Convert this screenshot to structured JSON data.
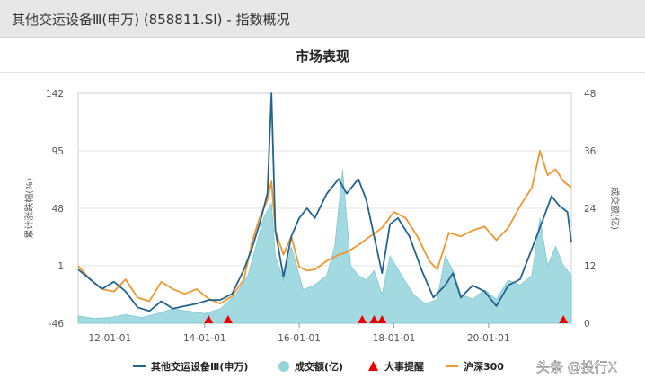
{
  "header": {
    "title": "其他交运设备Ⅲ(申万) (858811.SI) - 指数概况"
  },
  "section": {
    "title": "市场表现"
  },
  "watermark": "头条 @投行X",
  "colors": {
    "index": "#22638f",
    "volume": "#93d4dc",
    "event": "#ee0000",
    "csi300": "#f0962d"
  },
  "chart_data": {
    "type": "line",
    "xlabel": "",
    "ylabel_left": "累计涨跌幅(%)",
    "ylabel_right": "成交额(亿)",
    "y_left": {
      "min": -46,
      "max": 142,
      "ticks": [
        "142",
        "95",
        "48",
        "1",
        "-46"
      ]
    },
    "y_right": {
      "min": 0,
      "max": 48,
      "ticks": [
        "48",
        "36",
        "24",
        "12",
        "0"
      ]
    },
    "x_ticks": [
      "12-01-01",
      "14-01-01",
      "16-01-01",
      "18-01-01",
      "20-01-01"
    ],
    "x_range": [
      "2011-05-01",
      "2021-10-01"
    ],
    "legend": [
      "其他交运设备Ⅲ(申万)",
      "成交额(亿)",
      "大事提醒",
      "沪深300"
    ],
    "legend_position": "bottom",
    "grid": true,
    "series": [
      {
        "name": "其他交运设备Ⅲ(申万)",
        "points": [
          [
            "2011-05",
            -2
          ],
          [
            "2011-08",
            -10
          ],
          [
            "2011-11",
            -18
          ],
          [
            "2012-02",
            -12
          ],
          [
            "2012-05",
            -20
          ],
          [
            "2012-08",
            -33
          ],
          [
            "2012-11",
            -36
          ],
          [
            "2013-02",
            -28
          ],
          [
            "2013-05",
            -34
          ],
          [
            "2013-08",
            -32
          ],
          [
            "2013-11",
            -30
          ],
          [
            "2014-02",
            -27
          ],
          [
            "2014-05",
            -27
          ],
          [
            "2014-08",
            -22
          ],
          [
            "2014-11",
            -2
          ],
          [
            "2015-01",
            15
          ],
          [
            "2015-03",
            35
          ],
          [
            "2015-05",
            60
          ],
          [
            "2015-06",
            142
          ],
          [
            "2015-07",
            30
          ],
          [
            "2015-09",
            -8
          ],
          [
            "2015-11",
            25
          ],
          [
            "2016-01",
            40
          ],
          [
            "2016-03",
            48
          ],
          [
            "2016-05",
            40
          ],
          [
            "2016-08",
            60
          ],
          [
            "2016-11",
            72
          ],
          [
            "2017-01",
            60
          ],
          [
            "2017-04",
            72
          ],
          [
            "2017-06",
            55
          ],
          [
            "2017-08",
            25
          ],
          [
            "2017-10",
            -5
          ],
          [
            "2017-12",
            35
          ],
          [
            "2018-02",
            40
          ],
          [
            "2018-05",
            25
          ],
          [
            "2018-08",
            -2
          ],
          [
            "2018-11",
            -25
          ],
          [
            "2019-02",
            -15
          ],
          [
            "2019-04",
            -5
          ],
          [
            "2019-06",
            -25
          ],
          [
            "2019-09",
            -15
          ],
          [
            "2019-12",
            -20
          ],
          [
            "2020-03",
            -32
          ],
          [
            "2020-06",
            -15
          ],
          [
            "2020-09",
            -10
          ],
          [
            "2020-12",
            15
          ],
          [
            "2021-03",
            40
          ],
          [
            "2021-05",
            58
          ],
          [
            "2021-07",
            50
          ],
          [
            "2021-09",
            45
          ],
          [
            "2021-10",
            20
          ]
        ]
      },
      {
        "name": "沪深300",
        "points": [
          [
            "2011-05",
            1
          ],
          [
            "2011-08",
            -10
          ],
          [
            "2011-11",
            -18
          ],
          [
            "2012-02",
            -20
          ],
          [
            "2012-05",
            -10
          ],
          [
            "2012-08",
            -25
          ],
          [
            "2012-11",
            -28
          ],
          [
            "2013-02",
            -12
          ],
          [
            "2013-05",
            -18
          ],
          [
            "2013-08",
            -22
          ],
          [
            "2013-11",
            -18
          ],
          [
            "2014-02",
            -26
          ],
          [
            "2014-05",
            -30
          ],
          [
            "2014-08",
            -24
          ],
          [
            "2014-11",
            -10
          ],
          [
            "2015-01",
            20
          ],
          [
            "2015-03",
            40
          ],
          [
            "2015-05",
            55
          ],
          [
            "2015-06",
            70
          ],
          [
            "2015-07",
            30
          ],
          [
            "2015-09",
            10
          ],
          [
            "2015-11",
            25
          ],
          [
            "2016-01",
            0
          ],
          [
            "2016-03",
            -3
          ],
          [
            "2016-05",
            -2
          ],
          [
            "2016-08",
            5
          ],
          [
            "2016-11",
            10
          ],
          [
            "2017-01",
            12
          ],
          [
            "2017-04",
            18
          ],
          [
            "2017-07",
            25
          ],
          [
            "2017-10",
            32
          ],
          [
            "2018-01",
            45
          ],
          [
            "2018-04",
            40
          ],
          [
            "2018-07",
            25
          ],
          [
            "2018-10",
            5
          ],
          [
            "2018-12",
            -2
          ],
          [
            "2019-03",
            28
          ],
          [
            "2019-06",
            25
          ],
          [
            "2019-09",
            30
          ],
          [
            "2019-12",
            33
          ],
          [
            "2020-03",
            22
          ],
          [
            "2020-06",
            32
          ],
          [
            "2020-09",
            50
          ],
          [
            "2020-12",
            65
          ],
          [
            "2021-02",
            95
          ],
          [
            "2021-04",
            75
          ],
          [
            "2021-06",
            80
          ],
          [
            "2021-08",
            70
          ],
          [
            "2021-10",
            65
          ]
        ]
      },
      {
        "name": "成交额(亿)",
        "points": [
          [
            "2011-05",
            1.5
          ],
          [
            "2011-09",
            1
          ],
          [
            "2012-01",
            1.2
          ],
          [
            "2012-05",
            1.8
          ],
          [
            "2012-09",
            1.2
          ],
          [
            "2013-01",
            2
          ],
          [
            "2013-05",
            3
          ],
          [
            "2013-09",
            2.5
          ],
          [
            "2014-01",
            2
          ],
          [
            "2014-05",
            3
          ],
          [
            "2014-09",
            6
          ],
          [
            "2014-12",
            10
          ],
          [
            "2015-02",
            16
          ],
          [
            "2015-04",
            22
          ],
          [
            "2015-06",
            25
          ],
          [
            "2015-07",
            14
          ],
          [
            "2015-09",
            9
          ],
          [
            "2015-11",
            16
          ],
          [
            "2016-02",
            7
          ],
          [
            "2016-05",
            8
          ],
          [
            "2016-08",
            10
          ],
          [
            "2016-10",
            16
          ],
          [
            "2016-12",
            32
          ],
          [
            "2017-02",
            12
          ],
          [
            "2017-04",
            10
          ],
          [
            "2017-06",
            9
          ],
          [
            "2017-08",
            11
          ],
          [
            "2017-10",
            6
          ],
          [
            "2017-12",
            14
          ],
          [
            "2018-03",
            10
          ],
          [
            "2018-06",
            6
          ],
          [
            "2018-09",
            4
          ],
          [
            "2018-12",
            5
          ],
          [
            "2019-02",
            14
          ],
          [
            "2019-04",
            11
          ],
          [
            "2019-06",
            6
          ],
          [
            "2019-09",
            5
          ],
          [
            "2019-12",
            7
          ],
          [
            "2020-03",
            5
          ],
          [
            "2020-06",
            9
          ],
          [
            "2020-09",
            8
          ],
          [
            "2020-12",
            10
          ],
          [
            "2021-02",
            22
          ],
          [
            "2021-04",
            12
          ],
          [
            "2021-06",
            16
          ],
          [
            "2021-08",
            12
          ],
          [
            "2021-10",
            10
          ]
        ]
      }
    ],
    "events": [
      "2014-02-01",
      "2014-07-01",
      "2017-05-01",
      "2017-08-01",
      "2017-10-01",
      "2021-08-01"
    ]
  }
}
